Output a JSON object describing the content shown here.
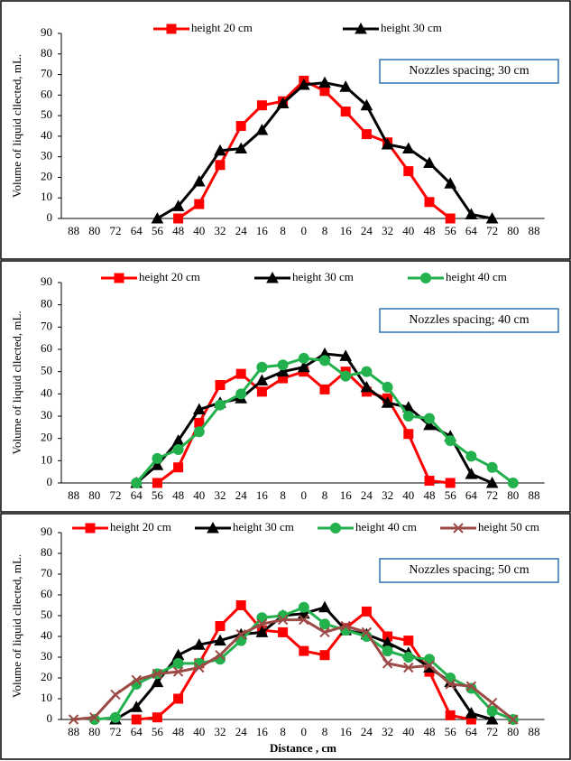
{
  "chart_data": [
    {
      "type": "line",
      "y_label": "Volume of liquid cllected, mL.",
      "annotation": "Nozzles spacing; 30 cm",
      "categories": [
        "88",
        "80",
        "72",
        "64",
        "56",
        "48",
        "40",
        "32",
        "24",
        "16",
        "8",
        "0",
        "8",
        "16",
        "24",
        "32",
        "40",
        "48",
        "56",
        "64",
        "72",
        "80",
        "88"
      ],
      "ylim": [
        0,
        90
      ],
      "yticks": [
        0,
        10,
        20,
        30,
        40,
        50,
        60,
        70,
        80,
        90
      ],
      "series": [
        {
          "name": "height 20 cm",
          "color": "#ff0000",
          "marker": "square",
          "values": [
            null,
            null,
            null,
            null,
            null,
            0,
            7,
            26,
            45,
            55,
            57,
            67,
            62,
            52,
            41,
            37,
            23,
            8,
            0,
            null,
            null,
            null,
            null
          ]
        },
        {
          "name": "height 30 cm",
          "color": "#000000",
          "marker": "triangle",
          "values": [
            null,
            null,
            null,
            null,
            0,
            6,
            18,
            33,
            34,
            43,
            56,
            65,
            66,
            64,
            55,
            36,
            34,
            27,
            17,
            2,
            0,
            null,
            null
          ]
        }
      ]
    },
    {
      "type": "line",
      "y_label": "Volume of liquid cllected, mL.",
      "annotation": "Nozzles spacing; 40 cm",
      "categories": [
        "88",
        "80",
        "72",
        "64",
        "56",
        "48",
        "40",
        "32",
        "24",
        "16",
        "8",
        "0",
        "8",
        "16",
        "24",
        "32",
        "40",
        "48",
        "56",
        "64",
        "72",
        "80",
        "88"
      ],
      "ylim": [
        0,
        90
      ],
      "yticks": [
        0,
        10,
        20,
        30,
        40,
        50,
        60,
        70,
        80,
        90
      ],
      "series": [
        {
          "name": "height 20 cm",
          "color": "#ff0000",
          "marker": "square",
          "values": [
            null,
            null,
            null,
            null,
            0,
            7,
            27,
            44,
            49,
            41,
            47,
            50,
            42,
            50,
            41,
            38,
            22,
            1,
            0,
            null,
            null,
            null,
            null
          ]
        },
        {
          "name": "height 30 cm",
          "color": "#000000",
          "marker": "triangle",
          "values": [
            null,
            null,
            null,
            0,
            8,
            19,
            33,
            36,
            38,
            46,
            50,
            52,
            58,
            57,
            43,
            36,
            34,
            26,
            21,
            4,
            0,
            null,
            null
          ]
        },
        {
          "name": "height 40 cm",
          "color": "#22b14c",
          "marker": "circle",
          "values": [
            null,
            null,
            null,
            0,
            11,
            15,
            23,
            35,
            40,
            52,
            53,
            56,
            55,
            48,
            50,
            43,
            30,
            29,
            19,
            12,
            7,
            0,
            null
          ]
        }
      ]
    },
    {
      "type": "line",
      "y_label": "Volume of liquid cllected, mL.",
      "annotation": "Nozzles spacing; 50 cm",
      "x_label": "Distance , cm",
      "categories": [
        "88",
        "80",
        "72",
        "64",
        "56",
        "48",
        "40",
        "32",
        "24",
        "16",
        "8",
        "0",
        "8",
        "16",
        "24",
        "32",
        "40",
        "48",
        "56",
        "64",
        "72",
        "80",
        "88"
      ],
      "ylim": [
        0,
        90
      ],
      "yticks": [
        0,
        10,
        20,
        30,
        40,
        50,
        60,
        70,
        80,
        90
      ],
      "series": [
        {
          "name": "height 20 cm",
          "color": "#ff0000",
          "marker": "square",
          "values": [
            null,
            null,
            null,
            0,
            1,
            10,
            27,
            45,
            55,
            43,
            42,
            33,
            31,
            44,
            52,
            40,
            38,
            23,
            2,
            0,
            null,
            null,
            null
          ]
        },
        {
          "name": "height 30 cm",
          "color": "#000000",
          "marker": "triangle",
          "values": [
            null,
            null,
            0,
            6,
            18,
            31,
            36,
            38,
            41,
            42,
            50,
            51,
            54,
            43,
            41,
            37,
            32,
            25,
            18,
            3,
            0,
            null,
            null
          ]
        },
        {
          "name": "height 40 cm",
          "color": "#22b14c",
          "marker": "circle",
          "values": [
            null,
            0,
            1,
            17,
            22,
            27,
            27,
            29,
            38,
            49,
            50,
            54,
            46,
            43,
            40,
            33,
            30,
            29,
            20,
            15,
            4,
            0,
            null
          ]
        },
        {
          "name": "height 50 cm",
          "color": "#9b4a45",
          "marker": "x",
          "values": [
            0,
            1,
            12,
            19,
            22,
            23,
            25,
            31,
            41,
            46,
            48,
            48,
            42,
            45,
            42,
            27,
            25,
            26,
            17,
            16,
            8,
            0,
            null
          ]
        }
      ]
    }
  ]
}
